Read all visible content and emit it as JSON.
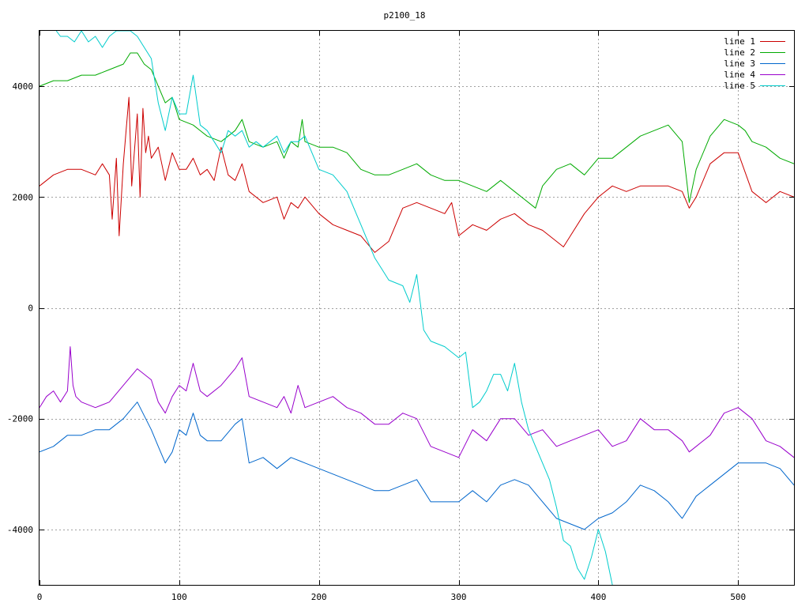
{
  "chart_data": {
    "type": "line",
    "title": "p2100_18",
    "xlabel": "",
    "ylabel": "",
    "xlim": [
      0,
      540
    ],
    "ylim": [
      -5000,
      5000
    ],
    "xticks": [
      0,
      100,
      200,
      300,
      400,
      500
    ],
    "yticks": [
      -4000,
      -2000,
      0,
      2000,
      4000
    ],
    "grid": true,
    "legend_position": "top-right",
    "series": [
      {
        "name": "line 1",
        "color": "#cc0000",
        "x": [
          0,
          10,
          20,
          30,
          40,
          45,
          50,
          52,
          55,
          57,
          60,
          62,
          64,
          66,
          70,
          72,
          74,
          76,
          78,
          80,
          85,
          90,
          95,
          100,
          105,
          110,
          115,
          120,
          125,
          130,
          135,
          140,
          145,
          150,
          160,
          170,
          175,
          180,
          185,
          190,
          200,
          210,
          220,
          230,
          240,
          245,
          250,
          260,
          270,
          280,
          290,
          295,
          300,
          310,
          320,
          330,
          340,
          350,
          360,
          370,
          375,
          380,
          390,
          400,
          410,
          420,
          430,
          440,
          450,
          460,
          465,
          470,
          480,
          490,
          500,
          510,
          520,
          530,
          540
        ],
        "y": [
          2200,
          2400,
          2500,
          2500,
          2400,
          2600,
          2400,
          1600,
          2700,
          1300,
          2600,
          3200,
          3800,
          2200,
          3500,
          2000,
          3600,
          2800,
          3100,
          2700,
          2900,
          2300,
          2800,
          2500,
          2500,
          2700,
          2400,
          2500,
          2300,
          2900,
          2400,
          2300,
          2600,
          2100,
          1900,
          2000,
          1600,
          1900,
          1800,
          2000,
          1700,
          1500,
          1400,
          1300,
          1000,
          1100,
          1200,
          1800,
          1900,
          1800,
          1700,
          1900,
          1300,
          1500,
          1400,
          1600,
          1700,
          1500,
          1400,
          1200,
          1100,
          1300,
          1700,
          2000,
          2200,
          2100,
          2200,
          2200,
          2200,
          2100,
          1800,
          2000,
          2600,
          2800,
          2800,
          2100,
          1900,
          2100,
          2000
        ]
      },
      {
        "name": "line 2",
        "color": "#00aa00",
        "x": [
          0,
          10,
          20,
          30,
          40,
          50,
          60,
          65,
          70,
          75,
          80,
          85,
          90,
          95,
          100,
          110,
          120,
          130,
          140,
          145,
          150,
          160,
          170,
          175,
          180,
          185,
          188,
          190,
          200,
          210,
          220,
          230,
          240,
          250,
          260,
          270,
          280,
          290,
          300,
          310,
          320,
          330,
          340,
          350,
          355,
          360,
          370,
          380,
          390,
          400,
          410,
          420,
          430,
          440,
          450,
          460,
          465,
          470,
          480,
          490,
          500,
          505,
          510,
          520,
          530,
          540
        ],
        "y": [
          4000,
          4100,
          4100,
          4200,
          4200,
          4300,
          4400,
          4600,
          4600,
          4400,
          4300,
          4000,
          3700,
          3800,
          3400,
          3300,
          3100,
          3000,
          3200,
          3400,
          3000,
          2900,
          3000,
          2700,
          3000,
          2900,
          3400,
          3000,
          2900,
          2900,
          2800,
          2500,
          2400,
          2400,
          2500,
          2600,
          2400,
          2300,
          2300,
          2200,
          2100,
          2300,
          2100,
          1900,
          1800,
          2200,
          2500,
          2600,
          2400,
          2700,
          2700,
          2900,
          3100,
          3200,
          3300,
          3000,
          1900,
          2500,
          3100,
          3400,
          3300,
          3200,
          3000,
          2900,
          2700,
          2600
        ]
      },
      {
        "name": "line 3",
        "color": "#0066cc",
        "x": [
          0,
          10,
          20,
          30,
          40,
          50,
          60,
          70,
          80,
          85,
          90,
          95,
          100,
          105,
          110,
          115,
          120,
          130,
          140,
          145,
          150,
          160,
          170,
          175,
          180,
          190,
          200,
          210,
          220,
          230,
          240,
          250,
          260,
          270,
          280,
          290,
          300,
          310,
          320,
          330,
          340,
          350,
          360,
          370,
          380,
          390,
          400,
          410,
          420,
          430,
          440,
          450,
          460,
          465,
          470,
          480,
          490,
          500,
          510,
          520,
          530,
          540
        ],
        "y": [
          -2600,
          -2500,
          -2300,
          -2300,
          -2200,
          -2200,
          -2000,
          -1700,
          -2200,
          -2500,
          -2800,
          -2600,
          -2200,
          -2300,
          -1900,
          -2300,
          -2400,
          -2400,
          -2100,
          -2000,
          -2800,
          -2700,
          -2900,
          -2800,
          -2700,
          -2800,
          -2900,
          -3000,
          -3100,
          -3200,
          -3300,
          -3300,
          -3200,
          -3100,
          -3500,
          -3500,
          -3500,
          -3300,
          -3500,
          -3200,
          -3100,
          -3200,
          -3500,
          -3800,
          -3900,
          -4000,
          -3800,
          -3700,
          -3500,
          -3200,
          -3300,
          -3500,
          -3800,
          -3600,
          -3400,
          -3200,
          -3000,
          -2800,
          -2800,
          -2800,
          -2900,
          -3200
        ]
      },
      {
        "name": "line 4",
        "color": "#9900cc",
        "x": [
          0,
          5,
          10,
          15,
          20,
          22,
          24,
          26,
          30,
          40,
          50,
          60,
          70,
          80,
          85,
          90,
          95,
          100,
          105,
          110,
          115,
          120,
          130,
          140,
          145,
          150,
          160,
          170,
          175,
          180,
          185,
          190,
          200,
          210,
          220,
          230,
          240,
          250,
          260,
          270,
          280,
          290,
          300,
          310,
          320,
          330,
          340,
          350,
          360,
          370,
          380,
          390,
          400,
          410,
          420,
          430,
          440,
          450,
          460,
          465,
          470,
          480,
          490,
          500,
          510,
          520,
          530,
          540
        ],
        "y": [
          -1800,
          -1600,
          -1500,
          -1700,
          -1500,
          -700,
          -1400,
          -1600,
          -1700,
          -1800,
          -1700,
          -1400,
          -1100,
          -1300,
          -1700,
          -1900,
          -1600,
          -1400,
          -1500,
          -1000,
          -1500,
          -1600,
          -1400,
          -1100,
          -900,
          -1600,
          -1700,
          -1800,
          -1600,
          -1900,
          -1400,
          -1800,
          -1700,
          -1600,
          -1800,
          -1900,
          -2100,
          -2100,
          -1900,
          -2000,
          -2500,
          -2600,
          -2700,
          -2200,
          -2400,
          -2000,
          -2000,
          -2300,
          -2200,
          -2500,
          -2400,
          -2300,
          -2200,
          -2500,
          -2400,
          -2000,
          -2200,
          -2200,
          -2400,
          -2600,
          -2500,
          -2300,
          -1900,
          -1800,
          -2000,
          -2400,
          -2500,
          -2700
        ]
      },
      {
        "name": "line 5",
        "color": "#00cccc",
        "x": [
          12,
          15,
          20,
          25,
          30,
          35,
          40,
          45,
          50,
          55,
          60,
          65,
          70,
          75,
          80,
          85,
          90,
          95,
          100,
          105,
          110,
          115,
          120,
          125,
          130,
          135,
          140,
          145,
          150,
          155,
          160,
          170,
          175,
          180,
          185,
          190,
          200,
          210,
          220,
          230,
          240,
          245,
          250,
          260,
          265,
          270,
          275,
          280,
          290,
          300,
          305,
          310,
          315,
          320,
          325,
          330,
          335,
          340,
          345,
          350,
          355,
          360,
          365,
          370,
          375,
          380,
          385,
          390,
          395,
          400,
          405,
          410
        ],
        "y": [
          5000,
          4900,
          4900,
          4800,
          5000,
          4800,
          4900,
          4700,
          4900,
          5000,
          5000,
          5000,
          4900,
          4700,
          4500,
          3700,
          3200,
          3800,
          3500,
          3500,
          4200,
          3300,
          3200,
          3000,
          2800,
          3200,
          3100,
          3200,
          2900,
          3000,
          2900,
          3100,
          2800,
          3000,
          3000,
          3100,
          2500,
          2400,
          2100,
          1500,
          900,
          700,
          500,
          400,
          100,
          600,
          -400,
          -600,
          -700,
          -900,
          -800,
          -1800,
          -1700,
          -1500,
          -1200,
          -1200,
          -1500,
          -1000,
          -1700,
          -2200,
          -2500,
          -2800,
          -3100,
          -3600,
          -4200,
          -4300,
          -4700,
          -4900,
          -4500,
          -4000,
          -4400,
          -5000
        ]
      }
    ]
  }
}
